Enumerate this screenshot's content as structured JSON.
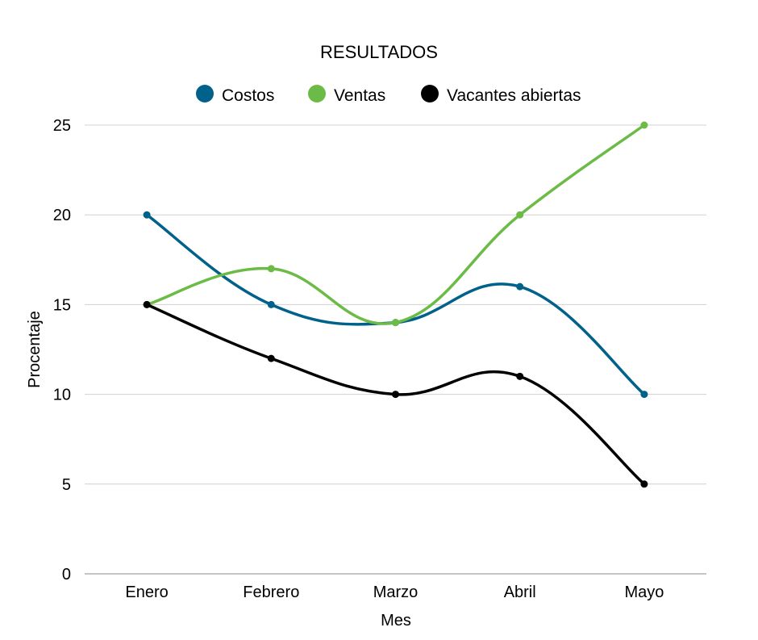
{
  "chart_data": {
    "type": "line",
    "title": "RESULTADOS",
    "xlabel": "Mes",
    "ylabel": "Procentaje",
    "categories": [
      "Enero",
      "Febrero",
      "Marzo",
      "Abril",
      "Mayo"
    ],
    "ylim": [
      0,
      25
    ],
    "yticks": [
      0,
      5,
      10,
      15,
      20,
      25
    ],
    "grid": true,
    "smooth": true,
    "legend_position": "top",
    "series": [
      {
        "name": "Costos",
        "color": "#00618a",
        "values": [
          20,
          15,
          14,
          16,
          10
        ]
      },
      {
        "name": "Ventas",
        "color": "#6bbb46",
        "values": [
          15,
          17,
          14,
          20,
          25
        ]
      },
      {
        "name": "Vacantes abiertas",
        "color": "#000000",
        "values": [
          15,
          12,
          10,
          11,
          5
        ]
      }
    ]
  }
}
